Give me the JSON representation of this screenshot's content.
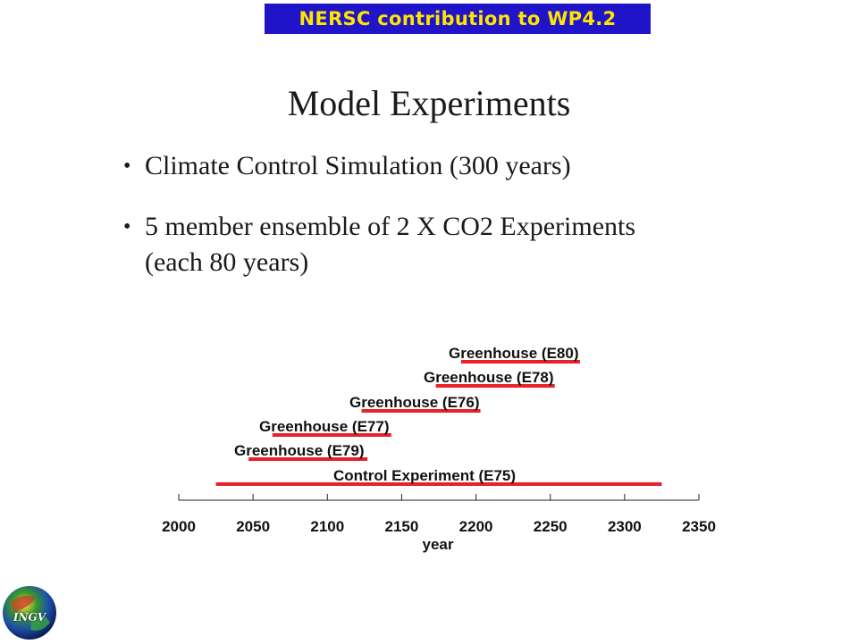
{
  "banner": {
    "text": "NERSC contribution to WP4.2"
  },
  "slide": {
    "title": "Model Experiments",
    "bullets": [
      {
        "text": "Climate Control Simulation (300 years)"
      },
      {
        "text": "5 member ensemble of 2 X CO2 Experiments",
        "text2": "(each 80 years)"
      }
    ]
  },
  "timeline": {
    "xlabel": "year",
    "xlim": [
      2000,
      2350
    ],
    "ticks": [
      "2000",
      "2050",
      "2100",
      "2150",
      "2200",
      "2250",
      "2300",
      "2350"
    ],
    "bar_color": "#e8212a",
    "runs": [
      {
        "label": "Greenhouse (E80)",
        "start": 2190,
        "end": 2270
      },
      {
        "label": "Greenhouse (E78)",
        "start": 2173,
        "end": 2253
      },
      {
        "label": "Greenhouse (E76)",
        "start": 2123,
        "end": 2203
      },
      {
        "label": "Greenhouse (E77)",
        "start": 2063,
        "end": 2143
      },
      {
        "label": "Greenhouse (E79)",
        "start": 2047,
        "end": 2127
      },
      {
        "label": "Control Experiment (E75)",
        "start": 2025,
        "end": 2325
      }
    ]
  },
  "logo": {
    "text": "INGV"
  }
}
